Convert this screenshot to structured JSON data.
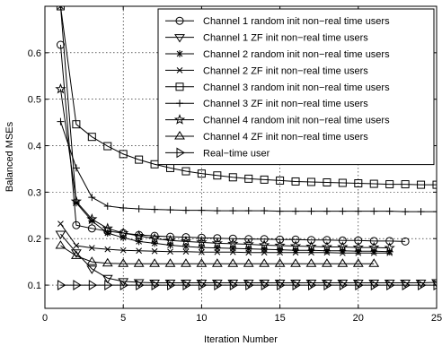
{
  "chart_data": {
    "type": "line",
    "title": "",
    "xlabel": "Iteration Number",
    "ylabel": "Balanced MSEs",
    "xlim": [
      0,
      25
    ],
    "ylim": [
      0.05,
      0.7
    ],
    "xticks": [
      0,
      5,
      10,
      15,
      20,
      25
    ],
    "yticks": [
      0.1,
      0.2,
      0.3,
      0.4,
      0.5,
      0.6
    ],
    "grid": true,
    "legend_position": "top-right",
    "series": [
      {
        "name": "Channel 1 random init non−real time users",
        "marker": "circle",
        "x": [
          1,
          2,
          3,
          4,
          5,
          6,
          7,
          8,
          9,
          10,
          11,
          12,
          13,
          14,
          15,
          16,
          17,
          18,
          19,
          20,
          21,
          22,
          23
        ],
        "y": [
          0.617,
          0.229,
          0.222,
          0.216,
          0.212,
          0.208,
          0.206,
          0.204,
          0.203,
          0.202,
          0.201,
          0.2,
          0.199,
          0.199,
          0.198,
          0.198,
          0.197,
          0.197,
          0.196,
          0.196,
          0.195,
          0.195,
          0.194
        ]
      },
      {
        "name": "Channel 1 ZF init non−real time users",
        "marker": "triangle-down",
        "x": [
          1,
          2,
          3,
          4,
          5,
          6,
          7,
          8,
          9,
          10,
          11,
          12,
          13,
          14,
          15,
          16,
          17,
          18,
          19,
          20,
          21,
          22,
          23,
          24,
          25
        ],
        "y": [
          0.21,
          0.17,
          0.135,
          0.115,
          0.108,
          0.106,
          0.105,
          0.105,
          0.105,
          0.105,
          0.105,
          0.105,
          0.105,
          0.105,
          0.105,
          0.105,
          0.105,
          0.105,
          0.105,
          0.105,
          0.105,
          0.105,
          0.105,
          0.105,
          0.106
        ]
      },
      {
        "name": "Channel 2 random init non−real time users",
        "marker": "asterisk",
        "x": [
          1,
          2,
          3,
          4,
          5,
          6,
          7,
          8,
          9,
          10,
          11,
          12,
          13,
          14,
          15,
          16,
          17,
          18,
          19,
          20,
          21,
          22
        ],
        "y": [
          0.7,
          0.277,
          0.238,
          0.212,
          0.202,
          0.194,
          0.19,
          0.186,
          0.183,
          0.181,
          0.18,
          0.179,
          0.178,
          0.177,
          0.176,
          0.175,
          0.175,
          0.174,
          0.174,
          0.173,
          0.173,
          0.172
        ]
      },
      {
        "name": "Channel 2 ZF init non−real time users",
        "marker": "x",
        "x": [
          1,
          2,
          3,
          4,
          5,
          6,
          7,
          8,
          9,
          10,
          11,
          12,
          13,
          14,
          15,
          16,
          17,
          18,
          19,
          20,
          21,
          22
        ],
        "y": [
          0.232,
          0.185,
          0.18,
          0.177,
          0.175,
          0.174,
          0.173,
          0.172,
          0.172,
          0.171,
          0.171,
          0.171,
          0.17,
          0.17,
          0.17,
          0.17,
          0.17,
          0.17,
          0.169,
          0.169,
          0.169,
          0.169
        ]
      },
      {
        "name": "Channel 3 random init non−real time users",
        "marker": "square",
        "x": [
          1,
          2,
          3,
          4,
          5,
          6,
          7,
          8,
          9,
          10,
          11,
          12,
          13,
          14,
          15,
          16,
          17,
          18,
          19,
          20,
          21,
          22,
          23,
          24,
          25
        ],
        "y": [
          0.7,
          0.446,
          0.419,
          0.399,
          0.382,
          0.37,
          0.36,
          0.352,
          0.345,
          0.34,
          0.336,
          0.332,
          0.329,
          0.327,
          0.325,
          0.323,
          0.322,
          0.321,
          0.32,
          0.319,
          0.318,
          0.317,
          0.317,
          0.316,
          0.316
        ]
      },
      {
        "name": "Channel 3 ZF init non−real time users",
        "marker": "plus",
        "x": [
          1,
          2,
          3,
          4,
          5,
          6,
          7,
          8,
          9,
          10,
          11,
          12,
          13,
          14,
          15,
          16,
          17,
          18,
          19,
          20,
          21,
          22,
          23,
          24,
          25
        ],
        "y": [
          0.452,
          0.352,
          0.289,
          0.27,
          0.266,
          0.264,
          0.263,
          0.262,
          0.261,
          0.261,
          0.26,
          0.26,
          0.26,
          0.26,
          0.259,
          0.259,
          0.259,
          0.259,
          0.259,
          0.259,
          0.259,
          0.259,
          0.258,
          0.258,
          0.258
        ]
      },
      {
        "name": "Channel 4 random init non−real time users",
        "marker": "star",
        "x": [
          1,
          2,
          3,
          4,
          5,
          6,
          7,
          8,
          9,
          10,
          11,
          12,
          13,
          14,
          15,
          16,
          17,
          18,
          19,
          20,
          21,
          22
        ],
        "y": [
          0.522,
          0.28,
          0.242,
          0.222,
          0.212,
          0.206,
          0.2,
          0.196,
          0.194,
          0.192,
          0.19,
          0.189,
          0.188,
          0.186,
          0.185,
          0.184,
          0.183,
          0.182,
          0.182,
          0.181,
          0.181,
          0.18
        ]
      },
      {
        "name": "Channel 4 ZF init non−real time users",
        "marker": "triangle-up",
        "x": [
          1,
          2,
          3,
          4,
          5,
          6,
          7,
          8,
          9,
          10,
          11,
          12,
          13,
          14,
          15,
          16,
          17,
          18,
          19,
          20,
          21
        ],
        "y": [
          0.185,
          0.163,
          0.15,
          0.147,
          0.146,
          0.146,
          0.146,
          0.146,
          0.146,
          0.146,
          0.146,
          0.146,
          0.146,
          0.146,
          0.146,
          0.146,
          0.146,
          0.146,
          0.146,
          0.146,
          0.146
        ]
      },
      {
        "name": "Real−time user",
        "marker": "triangle-right",
        "x": [
          1,
          2,
          3,
          4,
          5,
          6,
          7,
          8,
          9,
          10,
          11,
          12,
          13,
          14,
          15,
          16,
          17,
          18,
          19,
          20,
          21,
          22,
          23,
          24,
          25
        ],
        "y": [
          0.1,
          0.1,
          0.1,
          0.1,
          0.1,
          0.1,
          0.1,
          0.1,
          0.1,
          0.1,
          0.1,
          0.1,
          0.1,
          0.1,
          0.1,
          0.1,
          0.1,
          0.1,
          0.1,
          0.1,
          0.1,
          0.1,
          0.1,
          0.1,
          0.1
        ]
      }
    ]
  }
}
